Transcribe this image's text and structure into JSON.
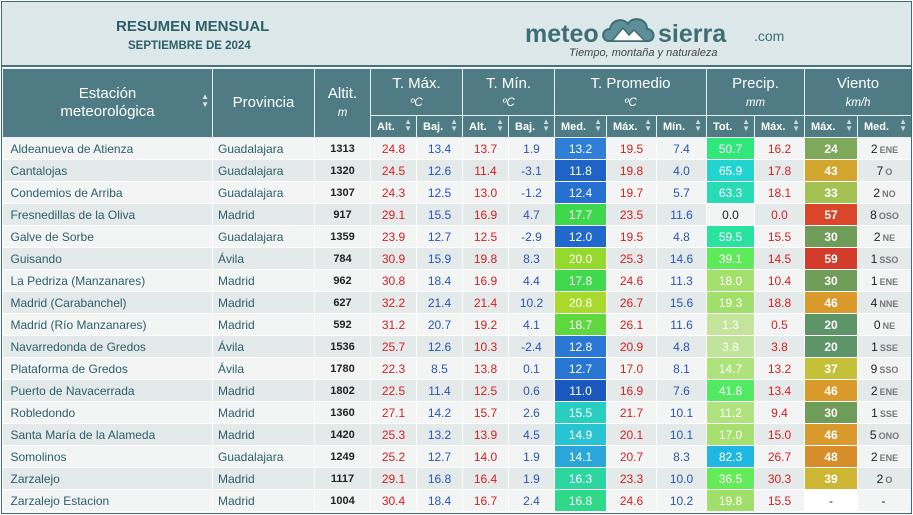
{
  "header": {
    "title": "RESUMEN MENSUAL",
    "subtitle": "SEPTIEMBRE DE 2024",
    "logo_left": "meteo",
    "logo_right": "sierra",
    "logo_suffix": ".com",
    "tagline": "Tiempo, montaña y naturaleza"
  },
  "columns": {
    "station": "Estación meteorológica",
    "province": "Provincia",
    "altitude": "Altit.",
    "altitude_unit": "m",
    "tmax": "T. Máx.",
    "tmin": "T. Mín.",
    "tavg": "T. Promedio",
    "temp_unit": "ºC",
    "precip": "Precip.",
    "precip_unit": "mm",
    "wind": "Viento",
    "wind_unit": "km/h",
    "sub_alt": "Alt.",
    "sub_baj": "Baj.",
    "sub_med": "Med.",
    "sub_max": "Máx.",
    "sub_min": "Mín.",
    "sub_tot": "Tot."
  },
  "rows": [
    {
      "station": "Aldeanueva de Atienza",
      "province": "Guadalajara",
      "alt": "1313",
      "tmax_alt": "24.8",
      "tmax_baj": "13.4",
      "tmin_alt": "13.7",
      "tmin_baj": "1.9",
      "tavg_med": "13.2",
      "tavg_max": "19.5",
      "tavg_min": "7.4",
      "pr_tot": "50.7",
      "pr_max": "16.2",
      "w_max": "24",
      "w_med": "2",
      "w_dir": "ENE",
      "c_med": "#2f7ed8",
      "c_tot": "#2ee87a",
      "c_wmax": "#7ea85a"
    },
    {
      "station": "Cantalojas",
      "province": "Guadalajara",
      "alt": "1320",
      "tmax_alt": "24.5",
      "tmax_baj": "12.6",
      "tmin_alt": "11.4",
      "tmin_baj": "-3.1",
      "tavg_med": "11.8",
      "tavg_max": "19.8",
      "tavg_min": "4.0",
      "pr_tot": "65.9",
      "pr_max": "17.8",
      "w_max": "43",
      "w_med": "7",
      "w_dir": "O",
      "c_med": "#1f63c7",
      "c_tot": "#22d4cf",
      "c_wmax": "#d2a52f"
    },
    {
      "station": "Condemios de Arriba",
      "province": "Guadalajara",
      "alt": "1307",
      "tmax_alt": "24.3",
      "tmax_baj": "12.5",
      "tmin_alt": "13.0",
      "tmin_baj": "-1.2",
      "tavg_med": "12.4",
      "tavg_max": "19.7",
      "tavg_min": "5.7",
      "pr_tot": "63.3",
      "pr_max": "18.1",
      "w_max": "33",
      "w_med": "2",
      "w_dir": "NO",
      "c_med": "#2570d0",
      "c_tot": "#27dcb4",
      "c_wmax": "#a4c254"
    },
    {
      "station": "Fresnedillas de la Oliva",
      "province": "Madrid",
      "alt": "917",
      "tmax_alt": "29.1",
      "tmax_baj": "15.5",
      "tmin_alt": "16.9",
      "tmin_baj": "4.7",
      "tavg_med": "17.7",
      "tavg_max": "23.5",
      "tavg_min": "11.6",
      "pr_tot": "0.0",
      "pr_max": "0.0",
      "w_max": "57",
      "w_med": "8",
      "w_dir": "OSO",
      "c_med": "#3fd84d",
      "c_tot": "#f3f5f5",
      "c_wmax": "#d9462a"
    },
    {
      "station": "Galve de Sorbe",
      "province": "Guadalajara",
      "alt": "1359",
      "tmax_alt": "23.9",
      "tmax_baj": "12.7",
      "tmin_alt": "12.5",
      "tmin_baj": "-2.9",
      "tavg_med": "12.0",
      "tavg_max": "19.5",
      "tavg_min": "4.8",
      "pr_tot": "59.5",
      "pr_max": "15.5",
      "w_max": "30",
      "w_med": "2",
      "w_dir": "NE",
      "c_med": "#2068cb",
      "c_tot": "#29e29e",
      "c_wmax": "#6f9c58"
    },
    {
      "station": "Guisando",
      "province": "Ávila",
      "alt": "784",
      "tmax_alt": "30.9",
      "tmax_baj": "15.9",
      "tmin_alt": "19.8",
      "tmin_baj": "8.3",
      "tavg_med": "20.0",
      "tavg_max": "25.3",
      "tavg_min": "14.6",
      "pr_tot": "39.1",
      "pr_max": "14.5",
      "w_max": "59",
      "w_med": "1",
      "w_dir": "SSO",
      "c_med": "#95d92d",
      "c_tot": "#5eeb5a",
      "c_wmax": "#d33b2a"
    },
    {
      "station": "La Pedriza (Manzanares)",
      "province": "Madrid",
      "alt": "962",
      "tmax_alt": "30.8",
      "tmax_baj": "18.4",
      "tmin_alt": "16.9",
      "tmin_baj": "4.4",
      "tavg_med": "17.8",
      "tavg_max": "24.6",
      "tavg_min": "11.3",
      "pr_tot": "18.0",
      "pr_max": "10.4",
      "w_max": "30",
      "w_med": "1",
      "w_dir": "ENE",
      "c_med": "#40d84c",
      "c_tot": "#a4e06c",
      "c_wmax": "#6f9c58"
    },
    {
      "station": "Madrid (Carabanchel)",
      "province": "Madrid",
      "alt": "627",
      "tmax_alt": "32.2",
      "tmax_baj": "21.4",
      "tmin_alt": "21.4",
      "tmin_baj": "10.2",
      "tavg_med": "20.8",
      "tavg_max": "26.7",
      "tavg_min": "15.6",
      "pr_tot": "19.3",
      "pr_max": "18.8",
      "w_max": "46",
      "w_med": "4",
      "w_dir": "NNE",
      "c_med": "#a9d92c",
      "c_tot": "#a0e06a",
      "c_wmax": "#d99a2b"
    },
    {
      "station": "Madrid (Río Manzanares)",
      "province": "Madrid",
      "alt": "592",
      "tmax_alt": "31.2",
      "tmax_baj": "20.7",
      "tmin_alt": "19.2",
      "tmin_baj": "4.1",
      "tavg_med": "18.7",
      "tavg_max": "26.1",
      "tavg_min": "11.6",
      "pr_tot": "1.3",
      "pr_max": "0.5",
      "w_max": "20",
      "w_med": "0",
      "w_dir": "NE",
      "c_med": "#5fd83f",
      "c_tot": "#c4e49c",
      "c_wmax": "#5d9468"
    },
    {
      "station": "Navarredonda de Gredos",
      "province": "Ávila",
      "alt": "1536",
      "tmax_alt": "25.7",
      "tmax_baj": "12.6",
      "tmin_alt": "10.3",
      "tmin_baj": "-2.4",
      "tavg_med": "12.8",
      "tavg_max": "20.9",
      "tavg_min": "4.8",
      "pr_tot": "3.8",
      "pr_max": "3.8",
      "w_max": "20",
      "w_med": "1",
      "w_dir": "SSE",
      "c_med": "#2a77d5",
      "c_tot": "#c0e49a",
      "c_wmax": "#5d9468"
    },
    {
      "station": "Plataforma de Gredos",
      "province": "Ávila",
      "alt": "1780",
      "tmax_alt": "22.3",
      "tmax_baj": "8.5",
      "tmin_alt": "13.8",
      "tmin_baj": "0.1",
      "tavg_med": "12.7",
      "tavg_max": "17.0",
      "tavg_min": "8.1",
      "pr_tot": "14.7",
      "pr_max": "13.2",
      "w_max": "37",
      "w_med": "9",
      "w_dir": "SSO",
      "c_med": "#2876d4",
      "c_tot": "#aee27a",
      "c_wmax": "#c5c03a"
    },
    {
      "station": "Puerto de Navacerrada",
      "province": "Madrid",
      "alt": "1802",
      "tmax_alt": "22.5",
      "tmax_baj": "11.4",
      "tmin_alt": "12.5",
      "tmin_baj": "0.6",
      "tavg_med": "11.0",
      "tavg_max": "16.9",
      "tavg_min": "7.6",
      "pr_tot": "41.8",
      "pr_max": "13.4",
      "w_max": "46",
      "w_med": "2",
      "w_dir": "ENE",
      "c_med": "#1a58bf",
      "c_tot": "#52ea62",
      "c_wmax": "#d99a2b"
    },
    {
      "station": "Robledondo",
      "province": "Madrid",
      "alt": "1360",
      "tmax_alt": "27.1",
      "tmax_baj": "14.2",
      "tmin_alt": "15.7",
      "tmin_baj": "2.6",
      "tavg_med": "15.5",
      "tavg_max": "21.7",
      "tavg_min": "10.1",
      "pr_tot": "11.2",
      "pr_max": "9.4",
      "w_max": "30",
      "w_med": "1",
      "w_dir": "SSE",
      "c_med": "#28cfc0",
      "c_tot": "#b0e27e",
      "c_wmax": "#6f9c58"
    },
    {
      "station": "Santa María de la Alameda",
      "province": "Madrid",
      "alt": "1420",
      "tmax_alt": "25.3",
      "tmax_baj": "13.2",
      "tmin_alt": "13.9",
      "tmin_baj": "4.5",
      "tavg_med": "14.9",
      "tavg_max": "20.1",
      "tavg_min": "10.1",
      "pr_tot": "17.0",
      "pr_max": "15.0",
      "w_max": "46",
      "w_med": "5",
      "w_dir": "ONO",
      "c_med": "#29c4d4",
      "c_tot": "#a6e070",
      "c_wmax": "#d99a2b"
    },
    {
      "station": "Somolinos",
      "province": "Guadalajara",
      "alt": "1249",
      "tmax_alt": "25.2",
      "tmax_baj": "12.7",
      "tmin_alt": "14.0",
      "tmin_baj": "1.9",
      "tavg_med": "14.1",
      "tavg_max": "20.7",
      "tavg_min": "8.3",
      "pr_tot": "82.3",
      "pr_max": "26.7",
      "w_max": "48",
      "w_med": "2",
      "w_dir": "ENE",
      "c_med": "#2aa6da",
      "c_tot": "#1fb8e4",
      "c_wmax": "#d88d2b"
    },
    {
      "station": "Zarzalejo",
      "province": "Madrid",
      "alt": "1117",
      "tmax_alt": "29.1",
      "tmax_baj": "16.8",
      "tmin_alt": "16.4",
      "tmin_baj": "1.9",
      "tavg_med": "16.3",
      "tavg_max": "23.3",
      "tavg_min": "10.0",
      "pr_tot": "36.5",
      "pr_max": "30.3",
      "w_max": "39",
      "w_med": "2",
      "w_dir": "O",
      "c_med": "#2bd6a0",
      "c_tot": "#64eb58",
      "c_wmax": "#cdb634"
    },
    {
      "station": "Zarzalejo Estacion",
      "province": "Madrid",
      "alt": "1004",
      "tmax_alt": "30.4",
      "tmax_baj": "18.4",
      "tmin_alt": "16.7",
      "tmin_baj": "2.4",
      "tavg_med": "16.8",
      "tavg_max": "24.6",
      "tavg_min": "10.2",
      "pr_tot": "19.8",
      "pr_max": "15.5",
      "w_max": "-",
      "w_med": "-",
      "w_dir": "",
      "c_med": "#30d88a",
      "c_tot": "#a0e06a",
      "c_wmax": "transparent"
    }
  ]
}
